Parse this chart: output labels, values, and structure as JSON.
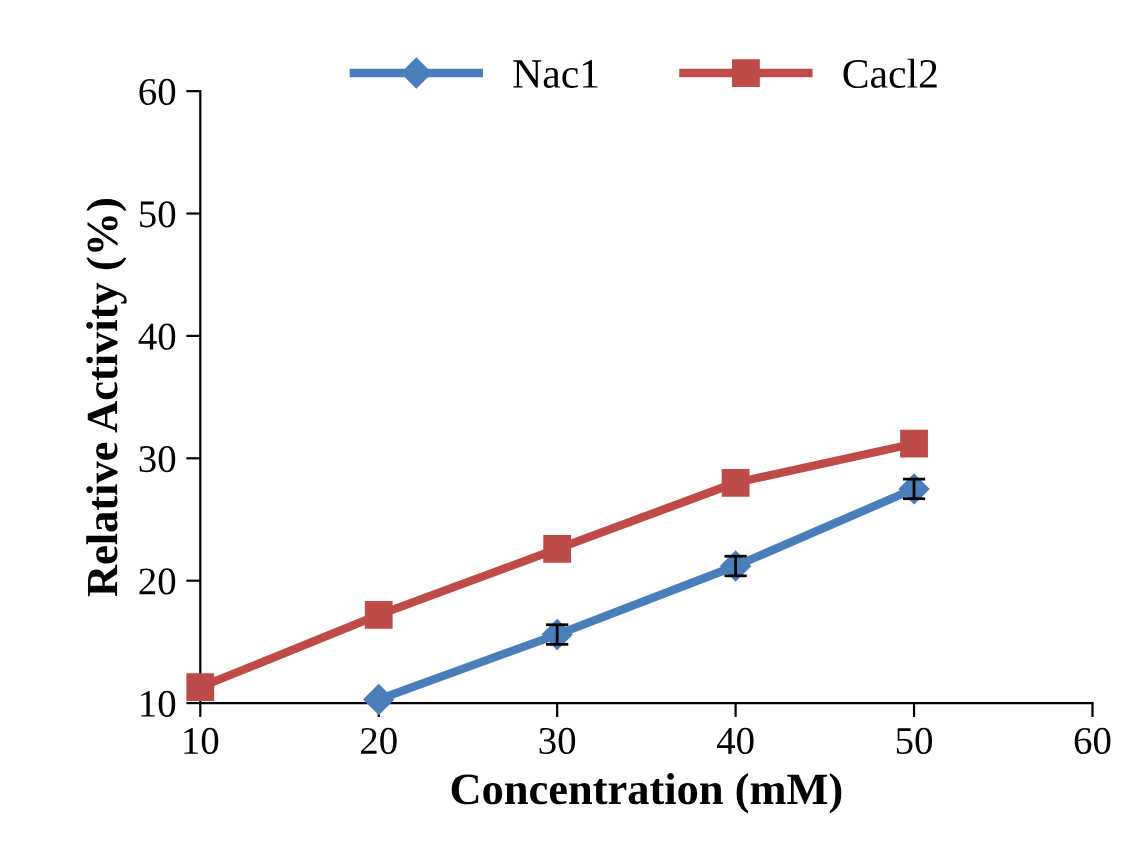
{
  "chart_data": {
    "type": "line",
    "xlabel": "Concentration (mM)",
    "ylabel": "Relative Activity (%)",
    "xlim": [
      10,
      60
    ],
    "xticks": [
      10,
      20,
      30,
      40,
      50,
      60
    ],
    "ylim": [
      10,
      60
    ],
    "yticks": [
      10,
      20,
      30,
      40,
      50,
      60
    ],
    "grid": false,
    "legend": "top",
    "line_style": "solid",
    "series": [
      {
        "name": "Nac1",
        "color": "#4a7ebb",
        "marker": "diamond",
        "x": [
          20,
          30,
          40,
          50
        ],
        "values": [
          10.3,
          15.6,
          21.2,
          27.5
        ],
        "errors": [
          null,
          0.8,
          0.8,
          0.8
        ]
      },
      {
        "name": "Cacl2",
        "color": "#be4b48",
        "marker": "square",
        "x": [
          10,
          20,
          30,
          40,
          50
        ],
        "values": [
          11.3,
          17.2,
          22.6,
          28.0,
          31.2
        ]
      }
    ]
  }
}
